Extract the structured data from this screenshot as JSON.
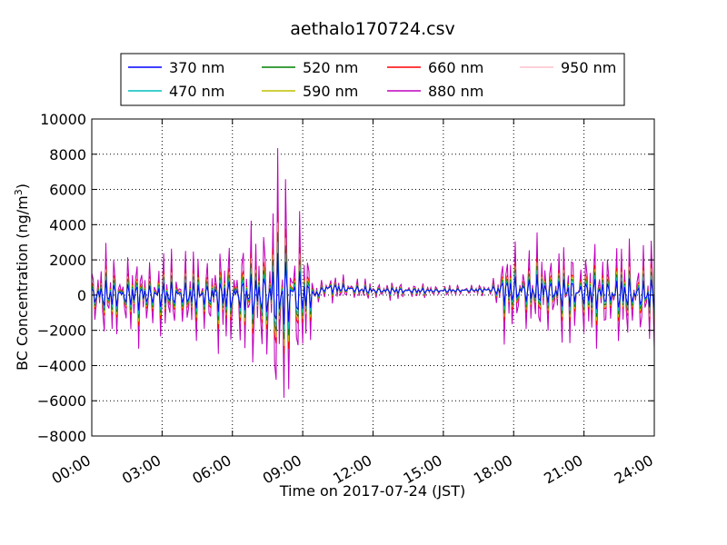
{
  "chart_data": {
    "type": "line",
    "title": "aethalo170724.csv",
    "xlabel": "Time on 2017-07-24 (JST)",
    "ylabel_main": "BC Concentration (ng/m",
    "ylabel_sup": "3",
    "ylabel_close": ")",
    "xlim": [
      "00:00",
      "24:00"
    ],
    "ylim": [
      -8000,
      10000
    ],
    "x_ticks": [
      "00:00",
      "03:00",
      "06:00",
      "09:00",
      "12:00",
      "15:00",
      "18:00",
      "21:00",
      "24:00"
    ],
    "y_ticks": [
      "10000",
      "8000",
      "6000",
      "4000",
      "2000",
      "0",
      "−2000",
      "−4000",
      "−6000",
      "−8000"
    ],
    "grid": true,
    "legend_position": "top",
    "series": [
      {
        "name": "370 nm",
        "color": "#0000ff"
      },
      {
        "name": "470 nm",
        "color": "#00bfbf"
      },
      {
        "name": "520 nm",
        "color": "#008000"
      },
      {
        "name": "590 nm",
        "color": "#bfbf00"
      },
      {
        "name": "660 nm",
        "color": "#ff0000"
      },
      {
        "name": "880 nm",
        "color": "#bf00bf"
      },
      {
        "name": "950 nm",
        "color": "#ffc0cb"
      }
    ],
    "amplitude_profile_hours": [
      0,
      0.5,
      3,
      5,
      6,
      7,
      7.5,
      8,
      8.5,
      9,
      9.5,
      11,
      12,
      13,
      15,
      17,
      17.5,
      18,
      21,
      24
    ],
    "amplitude_profile_ng_m3": [
      2000,
      2500,
      2300,
      2600,
      3200,
      4000,
      5500,
      7500,
      6500,
      4500,
      800,
      700,
      500,
      500,
      300,
      300,
      2500,
      2600,
      2800,
      3000
    ],
    "baseline_profile_hours": [
      0,
      9.5,
      10,
      11,
      12,
      15,
      17,
      24
    ],
    "baseline_profile_ng_m3": [
      0,
      0,
      400,
      350,
      250,
      250,
      300,
      0
    ]
  }
}
